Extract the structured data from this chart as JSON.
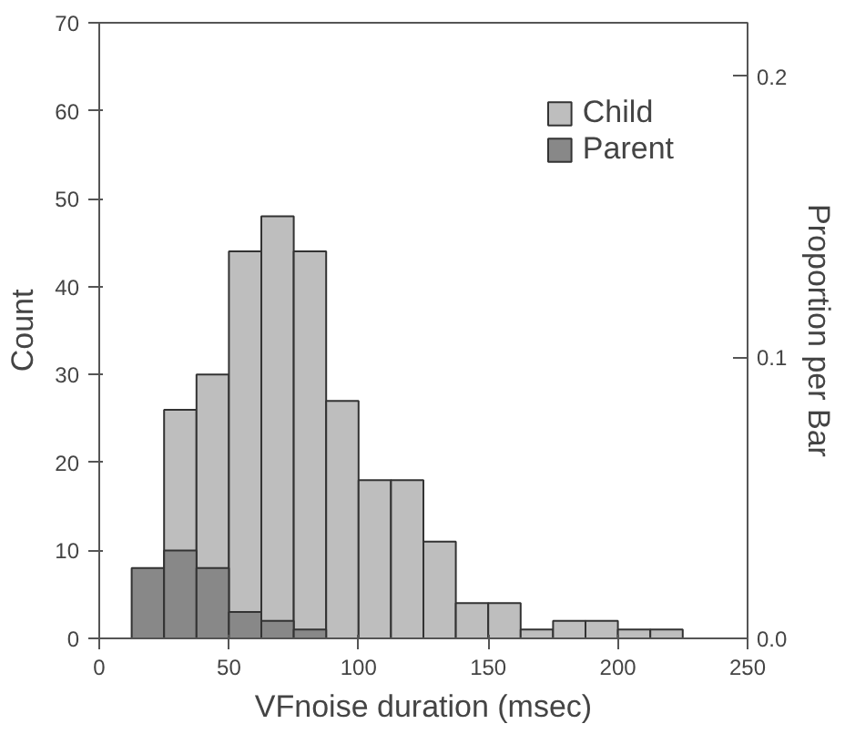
{
  "chart_data": {
    "type": "histogram",
    "xlabel": "VFnoise duration (msec)",
    "ylabel": "Count",
    "y2label": "Proportion per Bar",
    "bins": [
      12.5,
      25,
      37.5,
      50,
      62.5,
      75,
      87.5,
      100,
      112.5,
      125,
      137.5,
      150,
      162.5,
      175,
      187.5,
      200,
      212.5,
      225
    ],
    "series": [
      {
        "name": "Child",
        "color": "#bebebe",
        "values": [
          null,
          26,
          30,
          44,
          48,
          44,
          27,
          18,
          18,
          11,
          4,
          4,
          1,
          2,
          2,
          1,
          1
        ]
      },
      {
        "name": "Parent",
        "color": "#888888",
        "values": [
          8,
          10,
          8,
          3,
          2,
          1,
          null,
          null,
          null,
          null,
          null,
          null,
          null,
          null,
          null,
          null,
          null
        ]
      }
    ],
    "xlim": [
      0,
      250
    ],
    "xticks": [
      0,
      50,
      100,
      150,
      200,
      250
    ],
    "ylim": [
      0,
      70
    ],
    "yticks": [
      0,
      10,
      20,
      30,
      40,
      50,
      60,
      70
    ],
    "y2lim": [
      0,
      0.219
    ],
    "y2ticks": [
      {
        "value": 0,
        "label": "0.0"
      },
      0.1,
      0.2
    ],
    "grid": false,
    "legend": "top right"
  }
}
